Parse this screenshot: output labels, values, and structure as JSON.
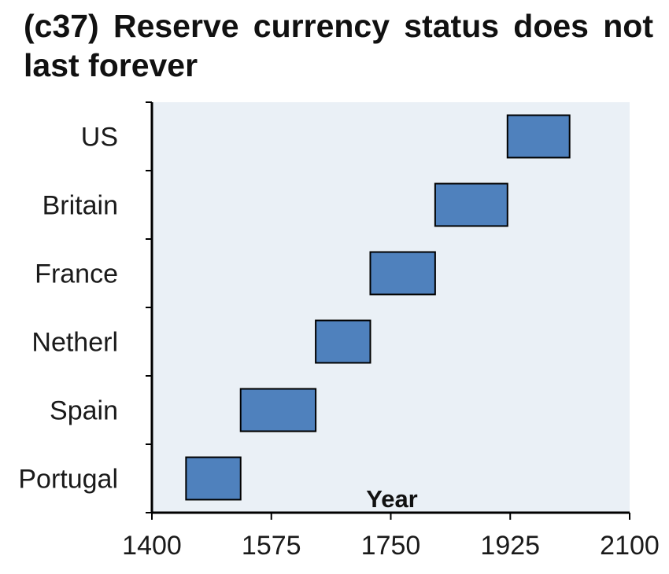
{
  "chart_data": {
    "type": "gantt",
    "title": "(c37) Reserve currency status does not last forever",
    "xlabel": "Year",
    "ylabel": "",
    "xlim": [
      1400,
      2100
    ],
    "xticks": [
      1400,
      1575,
      1750,
      1925,
      2100
    ],
    "categories": [
      "US",
      "Britain",
      "France",
      "Netherl",
      "Spain",
      "Portugal"
    ],
    "series": [
      {
        "name": "US",
        "start": 1921,
        "end": 2012
      },
      {
        "name": "Britain",
        "start": 1815,
        "end": 1921
      },
      {
        "name": "France",
        "start": 1720,
        "end": 1815
      },
      {
        "name": "Netherl",
        "start": 1640,
        "end": 1720
      },
      {
        "name": "Spain",
        "start": 1530,
        "end": 1640
      },
      {
        "name": "Portugal",
        "start": 1450,
        "end": 1530
      }
    ],
    "grid": false,
    "legend": "none",
    "colors": {
      "bar_fill": "#4f81bd",
      "bar_stroke": "#000000",
      "plot_background": "#eaf0f6",
      "axis": "#000000"
    }
  }
}
